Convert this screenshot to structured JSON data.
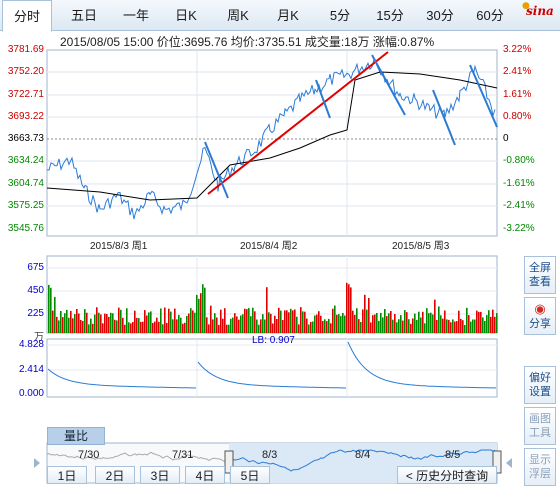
{
  "tabs": [
    {
      "label": "分时",
      "active": true
    },
    {
      "label": "五日"
    },
    {
      "label": "一年"
    },
    {
      "label": "日K"
    },
    {
      "label": "周K"
    },
    {
      "label": "月K"
    },
    {
      "label": "5分"
    },
    {
      "label": "15分"
    },
    {
      "label": "30分"
    },
    {
      "label": "60分"
    }
  ],
  "logo": "sina",
  "info": "2015/08/05 15:00  价位:3695.76  均价:3735.51  成交量:18万  涨幅:0.87%",
  "price_axis": {
    "left": [
      "3781.69",
      "3752.20",
      "3722.71",
      "3693.22",
      "3663.73",
      "3634.24",
      "3604.74",
      "3575.25",
      "3545.76"
    ],
    "right": [
      "3.22%",
      "2.41%",
      "1.61%",
      "0.80%",
      "0",
      "-0.80%",
      "-1.61%",
      "-2.41%",
      "-3.22%"
    ]
  },
  "date_labels": [
    "2015/8/3 周1",
    "2015/8/4 周2",
    "2015/8/5 周3"
  ],
  "volume_axis": [
    "675",
    "450",
    "225",
    "万"
  ],
  "lb_axis": [
    "4.828",
    "2.414",
    "0.000"
  ],
  "lb_label": "LB: 0.907",
  "lb_button": "量比",
  "nav_labels": [
    "7/30",
    "7/31",
    "8/3",
    "8/4",
    "8/5"
  ],
  "side_buttons": [
    {
      "line1": "全屏",
      "line2": "查看"
    },
    {
      "line1": "分享",
      "line2": ""
    },
    {
      "line1": "偏好",
      "line2": "设置"
    },
    {
      "line1": "画图",
      "line2": "工具"
    },
    {
      "line1": "显示",
      "line2": "浮层"
    }
  ],
  "day_buttons": [
    "1日",
    "2日",
    "3日",
    "4日",
    "5日"
  ],
  "history_button": "< 历史分时查询",
  "colors": {
    "up": "#e00000",
    "down": "#008a00",
    "price_line": "#2b7bd6",
    "avg_line": "#000000",
    "trend": "#e00000"
  },
  "chart_data": {
    "type": "line",
    "ylim": [
      3545.76,
      3781.69
    ],
    "prev_close": 3663.73,
    "x_sessions": [
      "2015/8/3 周1",
      "2015/8/4 周2",
      "2015/8/5 周3"
    ],
    "last_price": 3695.76,
    "avg_price": 3735.51,
    "volume_ylim": [
      0,
      675
    ],
    "lb_ylim": [
      0,
      4.828
    ],
    "lb_value": 0.907
  }
}
